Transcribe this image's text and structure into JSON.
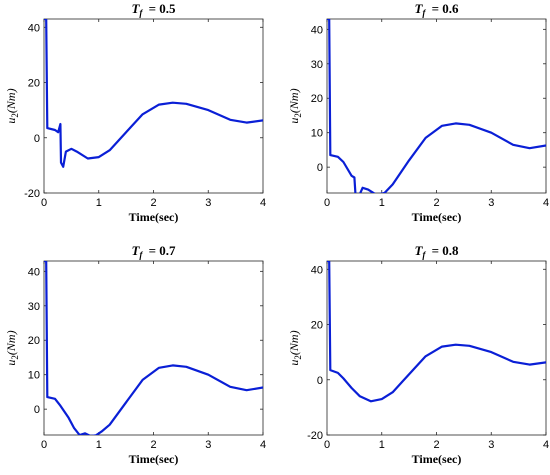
{
  "chart_data": [
    {
      "type": "line",
      "title_prefix": "T",
      "title_sub": "f",
      "title_value": "= 0.5",
      "xlabel": "Time(sec)",
      "ylabel_main": "u",
      "ylabel_sub": "2",
      "ylabel_unit": "(Nm)",
      "xlim": [
        0,
        4
      ],
      "ylim": [
        -20,
        43
      ],
      "xticks": [
        0,
        1,
        2,
        3,
        4
      ],
      "yticks": [
        -20,
        0,
        20,
        40
      ],
      "color": "#0a1fd6",
      "series": [
        {
          "x": [
            0,
            0.04,
            0.06,
            0.2,
            0.26,
            0.3,
            0.31,
            0.35,
            0.4,
            0.5,
            0.6,
            0.8,
            1.0,
            1.2,
            1.5,
            1.8,
            2.1,
            2.35,
            2.6,
            3.0,
            3.4,
            3.7,
            4.0
          ],
          "y": [
            43,
            43,
            3.5,
            2.8,
            2.0,
            5.0,
            -9.0,
            -10.5,
            -5.0,
            -4.0,
            -5.0,
            -7.5,
            -7.0,
            -4.5,
            2.0,
            8.5,
            12.0,
            12.7,
            12.3,
            10.0,
            6.5,
            5.5,
            6.3
          ]
        }
      ]
    },
    {
      "type": "line",
      "title_prefix": "T",
      "title_sub": "f",
      "title_value": "= 0.6",
      "xlabel": "Time(sec)",
      "ylabel_main": "u",
      "ylabel_sub": "2",
      "ylabel_unit": "(Nm)",
      "xlim": [
        0,
        4
      ],
      "ylim": [
        -7.5,
        43
      ],
      "xticks": [
        0,
        1,
        2,
        3,
        4
      ],
      "yticks": [
        0,
        10,
        20,
        30,
        40
      ],
      "color": "#0a1fd6",
      "series": [
        {
          "x": [
            0,
            0.04,
            0.06,
            0.2,
            0.3,
            0.45,
            0.5,
            0.52,
            0.58,
            0.65,
            0.75,
            0.9,
            1.05,
            1.2,
            1.5,
            1.8,
            2.1,
            2.35,
            2.6,
            3.0,
            3.4,
            3.7,
            4.0
          ],
          "y": [
            43,
            43,
            3.5,
            3.0,
            1.5,
            -2.5,
            -3.0,
            -8.0,
            -8.5,
            -6.0,
            -6.5,
            -8.0,
            -7.5,
            -5.0,
            2.0,
            8.5,
            12.0,
            12.7,
            12.3,
            10.0,
            6.5,
            5.5,
            6.3
          ]
        }
      ]
    },
    {
      "type": "line",
      "title_prefix": "T",
      "title_sub": "f",
      "title_value": "= 0.7",
      "xlabel": "Time(sec)",
      "ylabel_main": "u",
      "ylabel_sub": "2",
      "ylabel_unit": "(Nm)",
      "xlim": [
        0,
        4
      ],
      "ylim": [
        -7.5,
        43
      ],
      "xticks": [
        0,
        1,
        2,
        3,
        4
      ],
      "yticks": [
        0,
        10,
        20,
        30,
        40
      ],
      "color": "#0a1fd6",
      "series": [
        {
          "x": [
            0,
            0.04,
            0.06,
            0.2,
            0.3,
            0.45,
            0.55,
            0.65,
            0.75,
            0.85,
            0.95,
            1.05,
            1.2,
            1.5,
            1.8,
            2.1,
            2.35,
            2.6,
            3.0,
            3.4,
            3.7,
            4.0
          ],
          "y": [
            43,
            43,
            3.5,
            3.0,
            1.0,
            -2.5,
            -5.5,
            -7.5,
            -7.0,
            -7.8,
            -7.6,
            -6.5,
            -4.5,
            2.0,
            8.5,
            12.0,
            12.7,
            12.3,
            10.0,
            6.5,
            5.5,
            6.3
          ]
        }
      ]
    },
    {
      "type": "line",
      "title_prefix": "T",
      "title_sub": "f",
      "title_value": "= 0.8",
      "xlabel": "Time(sec)",
      "ylabel_main": "u",
      "ylabel_sub": "2",
      "ylabel_unit": "(Nm)",
      "xlim": [
        0,
        4
      ],
      "ylim": [
        -20,
        43
      ],
      "xticks": [
        0,
        1,
        2,
        3,
        4
      ],
      "yticks": [
        -20,
        0,
        20,
        40
      ],
      "color": "#0a1fd6",
      "series": [
        {
          "x": [
            0,
            0.04,
            0.06,
            0.2,
            0.3,
            0.45,
            0.6,
            0.8,
            1.0,
            1.2,
            1.5,
            1.8,
            2.1,
            2.35,
            2.6,
            3.0,
            3.4,
            3.7,
            4.0
          ],
          "y": [
            43,
            43,
            3.5,
            2.5,
            0.5,
            -3.0,
            -6.0,
            -7.8,
            -7.0,
            -4.5,
            2.0,
            8.5,
            12.0,
            12.7,
            12.3,
            10.0,
            6.5,
            5.5,
            6.3
          ]
        }
      ]
    }
  ]
}
